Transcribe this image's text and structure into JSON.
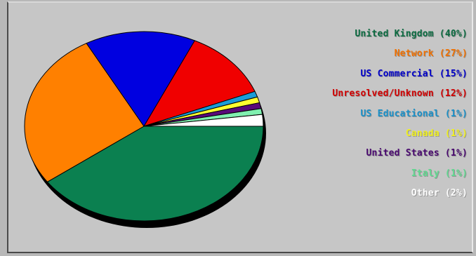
{
  "chart_data": {
    "type": "pie",
    "slices": [
      {
        "label": "United Kingdom (40%)",
        "name": "United Kingdom",
        "value": 40,
        "color": "#0b8050"
      },
      {
        "label": "Network (27%)",
        "name": "Network",
        "value": 27,
        "color": "#ff8000"
      },
      {
        "label": "US Commercial (15%)",
        "name": "US Commercial",
        "value": 15,
        "color": "#0000e0"
      },
      {
        "label": "Unresolved/Unknown (12%)",
        "name": "Unresolved/Unknown",
        "value": 12,
        "color": "#f00000"
      },
      {
        "label": "US Educational (1%)",
        "name": "US Educational",
        "value": 1,
        "color": "#1a9cd8"
      },
      {
        "label": "Canada (1%)",
        "name": "Canada",
        "value": 1,
        "color": "#ffff30"
      },
      {
        "label": "United States (1%)",
        "name": "United States",
        "value": 1,
        "color": "#5a0a7a"
      },
      {
        "label": "Italy (1%)",
        "name": "Italy",
        "value": 1,
        "color": "#80f0b0"
      },
      {
        "label": "Other (2%)",
        "name": "Other",
        "value": 2,
        "color": "#ffffff"
      }
    ],
    "legend": "right"
  },
  "legend_text_colors": [
    "#0b6a40",
    "#f07000",
    "#0000c8",
    "#d00000",
    "#1a90c8",
    "#f0f020",
    "#4a0a70",
    "#60d890",
    "#ffffff"
  ]
}
